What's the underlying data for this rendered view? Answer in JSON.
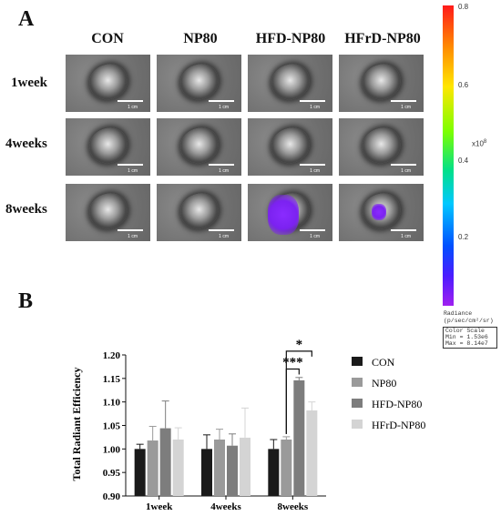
{
  "panel_a": {
    "letter": "A",
    "columns": [
      "CON",
      "NP80",
      "HFD-NP80",
      "HFrD-NP80"
    ],
    "rows": [
      "1week",
      "4weeks",
      "8weeks"
    ],
    "scale_label": "1 cm",
    "colorbar": {
      "ticks": [
        "0.8",
        "0.6",
        "0.4",
        "0.2"
      ],
      "exponent": "x10",
      "exponent_power": "8",
      "radiance_label": "Radiance",
      "radiance_units": "(p/sec/cm²/sr)",
      "color_scale_label": "Color Scale",
      "min_label": "Min = 1.53e6",
      "max_label": "Max = 8.14e7",
      "colors": [
        "#ff1a1a",
        "#ff8c00",
        "#ffe600",
        "#7cff00",
        "#00c8ff",
        "#0050ff",
        "#a020f0"
      ]
    }
  },
  "panel_b": {
    "letter": "B"
  },
  "chart_data": {
    "type": "bar",
    "title": "",
    "xlabel": "",
    "ylabel": "Total Radiant Efficiency",
    "ylim": [
      0.9,
      1.2
    ],
    "yticks": [
      "0.90",
      "0.95",
      "1.00",
      "1.05",
      "1.10",
      "1.15",
      "1.20"
    ],
    "categories": [
      "1week",
      "4weeks",
      "8weeks"
    ],
    "series": [
      {
        "name": "CON",
        "values": [
          1.0,
          1.0,
          1.0
        ],
        "errors": [
          0.01,
          0.03,
          0.02
        ],
        "color": "#1a1a1a"
      },
      {
        "name": "NP80",
        "values": [
          1.018,
          1.02,
          1.02
        ],
        "errors": [
          0.03,
          0.022,
          0.006
        ],
        "color": "#9a9a9a"
      },
      {
        "name": "HFD-NP80",
        "values": [
          1.044,
          1.007,
          1.146
        ],
        "errors": [
          0.058,
          0.025,
          0.006
        ],
        "color": "#7d7d7d"
      },
      {
        "name": "HFrD-NP80",
        "values": [
          1.02,
          1.024,
          1.082
        ],
        "errors": [
          0.025,
          0.063,
          0.018
        ],
        "color": "#d4d4d4"
      }
    ],
    "significance": [
      {
        "category": "8weeks",
        "from": "NP80",
        "to": "HFD-NP80",
        "label": "***"
      },
      {
        "category": "8weeks",
        "from": "NP80",
        "to": "HFrD-NP80",
        "label": "*"
      }
    ],
    "legend_position": "right",
    "grid": false
  }
}
